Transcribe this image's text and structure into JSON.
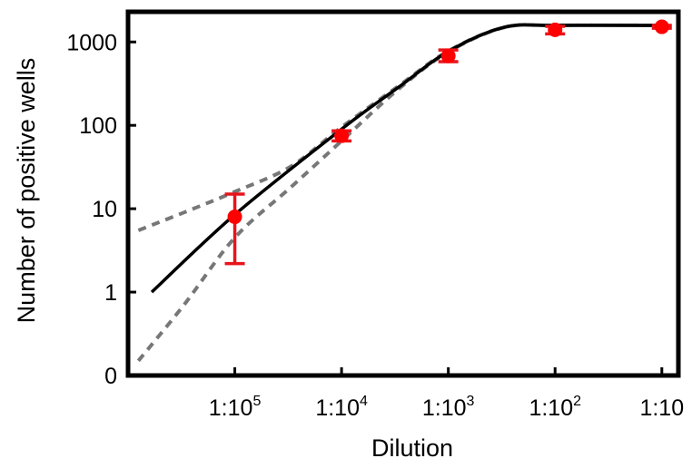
{
  "chart_data": {
    "type": "scatter",
    "xlabel": "Dilution",
    "ylabel": "Number of positive wells",
    "x_scale": "log (dilution factor)",
    "y_scale": "log (0 shown at bottom)",
    "x_ticks": [
      {
        "x": 100000,
        "base": "1:10",
        "exp": "5"
      },
      {
        "x": 10000,
        "base": "1:10",
        "exp": "4"
      },
      {
        "x": 1000,
        "base": "1:10",
        "exp": "3"
      },
      {
        "x": 100,
        "base": "1:10",
        "exp": "2"
      },
      {
        "x": 10,
        "base": "1:10",
        "exp": ""
      }
    ],
    "y_ticks": [
      {
        "y": 0.1,
        "label": "0"
      },
      {
        "y": 1,
        "label": "1"
      },
      {
        "y": 10,
        "label": "10"
      },
      {
        "y": 100,
        "label": "100"
      },
      {
        "y": 1000,
        "label": "1000"
      }
    ],
    "xlim": [
      1000000,
      7
    ],
    "ylim": [
      0.1,
      2300
    ],
    "grid": false,
    "points": [
      {
        "x": 100000,
        "y": 8,
        "err_low": 2.2,
        "err_high": 15
      },
      {
        "x": 10000,
        "y": 75,
        "err_low": 65,
        "err_high": 86
      },
      {
        "x": 1000,
        "y": 680,
        "err_low": 580,
        "err_high": 800
      },
      {
        "x": 100,
        "y": 1400,
        "err_low": 1250,
        "err_high": 1540
      },
      {
        "x": 10,
        "y": 1520,
        "err_low": 1460,
        "err_high": 1580
      }
    ],
    "fit_line": {
      "x": [
        600000,
        100000,
        10000,
        3000,
        1000,
        300,
        100,
        10
      ],
      "y": [
        1,
        8.5,
        90,
        280,
        770,
        1500,
        1580,
        1580
      ]
    },
    "ci_upper": {
      "x": [
        800000,
        300000,
        100000,
        30000,
        10000,
        3000,
        1000,
        300,
        100,
        10
      ],
      "y": [
        5.5,
        9,
        16,
        32,
        95,
        290,
        780,
        1500,
        1580,
        1580
      ]
    },
    "ci_lower": {
      "x": [
        800000,
        300000,
        100000,
        30000,
        10000,
        3000,
        1000,
        300,
        100,
        10
      ],
      "y": [
        0.15,
        0.7,
        4.5,
        18,
        65,
        265,
        760,
        1490,
        1580,
        1580
      ]
    },
    "colors": {
      "points": "#ff0000",
      "errorbars": "#e8141b",
      "fit": "#000000",
      "ci": "#777777"
    }
  }
}
